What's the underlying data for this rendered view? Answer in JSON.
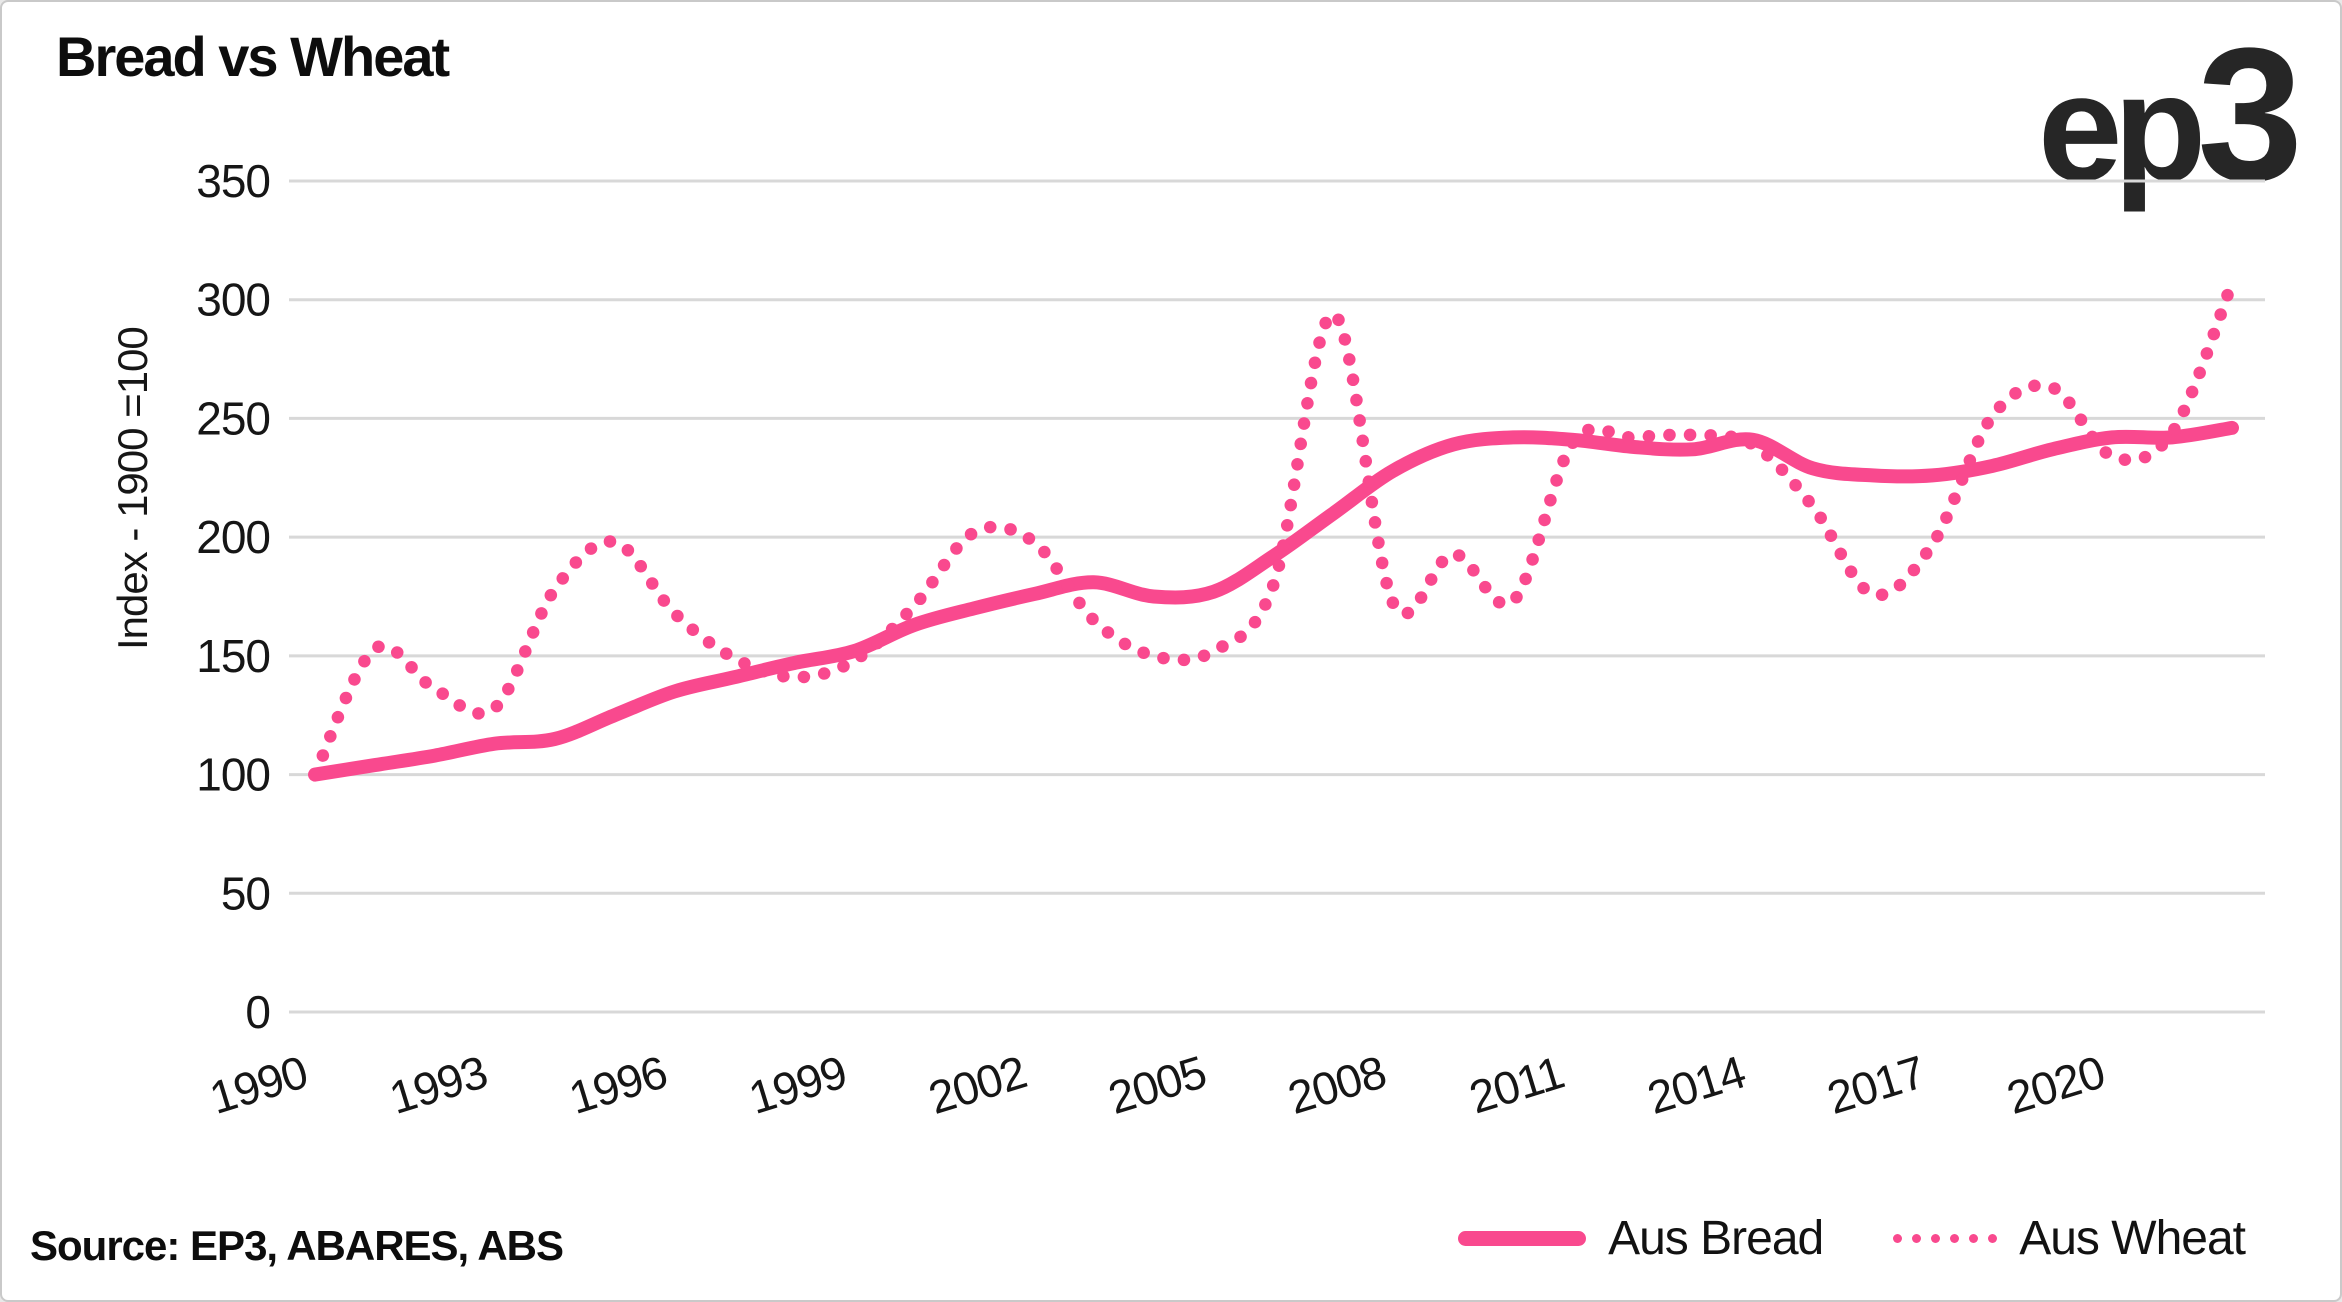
{
  "card": {
    "title": "Bread vs Wheat",
    "logo_text_ep": "ep",
    "logo_text_3": "3",
    "source_label": "Source: EP3, ABARES, ABS"
  },
  "legend": {
    "items": [
      {
        "label": "Aus Bread",
        "style": "solid"
      },
      {
        "label": "Aus Wheat",
        "style": "dotted"
      }
    ]
  },
  "colors": {
    "accent_pink": "#F9498E",
    "grid": "#D8D8D8",
    "text": "#161616",
    "logo": "#262626",
    "card_border": "#C9C9C9"
  },
  "chart_data": {
    "type": "line",
    "title": "Bread vs Wheat",
    "xlabel": "",
    "ylabel": "Index - 1900 =100",
    "ylim": [
      0,
      350
    ],
    "yticks": [
      0,
      50,
      100,
      150,
      200,
      250,
      300,
      350
    ],
    "xticks": [
      1990,
      1993,
      1996,
      1999,
      2002,
      2005,
      2008,
      2011,
      2014,
      2017,
      2020
    ],
    "grid": "horizontal-only",
    "legend_position": "bottom",
    "x": [
      1990,
      1991,
      1992,
      1993,
      1994,
      1995,
      1996,
      1997,
      1998,
      1999,
      2000,
      2001,
      2002,
      2003,
      2004,
      2005,
      2006,
      2007,
      2008,
      2009,
      2010,
      2011,
      2012,
      2013,
      2014,
      2015,
      2016,
      2017,
      2018,
      2019,
      2020,
      2021,
      2022
    ],
    "series": [
      {
        "name": "Aus Bread",
        "style": "solid",
        "values": [
          100,
          104,
          108,
          113,
          115,
          125,
          135,
          141,
          147,
          152,
          163,
          170,
          176,
          181,
          175,
          177,
          192,
          210,
          228,
          239,
          242,
          241,
          238,
          237,
          241,
          229,
          226,
          226,
          230,
          237,
          242,
          242,
          246
        ]
      },
      {
        "name": "Aus Wheat",
        "style": "dotted",
        "values": [
          100,
          153,
          136,
          128,
          178,
          198,
          168,
          149,
          141,
          148,
          171,
          202,
          198,
          165,
          150,
          152,
          180,
          294,
          172,
          193,
          173,
          240,
          242,
          243,
          239,
          213,
          176,
          197,
          251,
          263,
          234,
          244,
          307
        ]
      }
    ]
  }
}
